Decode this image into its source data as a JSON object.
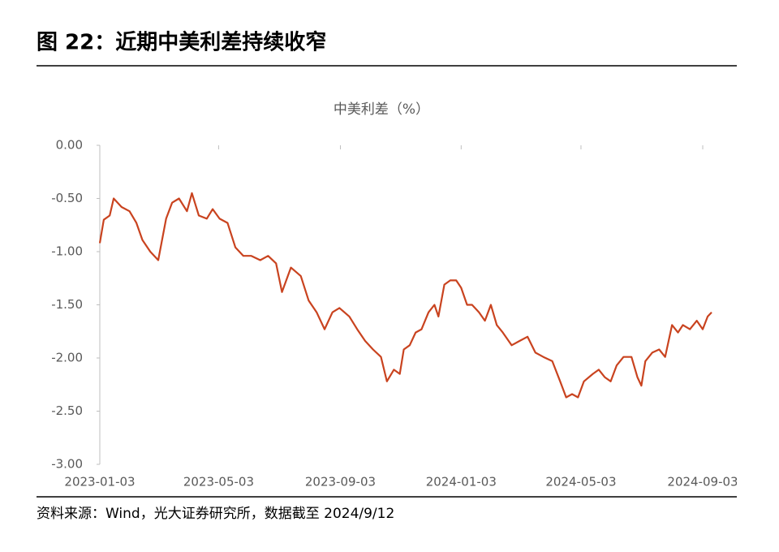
{
  "header": {
    "title": "图 22：近期中美利差持续收窄"
  },
  "chart_data": {
    "type": "line",
    "title": "中美利差（%）",
    "x": [
      "2023-01-03",
      "2023-01-07",
      "2023-01-13",
      "2023-01-17",
      "2023-01-25",
      "2023-02-02",
      "2023-02-09",
      "2023-02-15",
      "2023-02-23",
      "2023-03-03",
      "2023-03-11",
      "2023-03-17",
      "2023-03-24",
      "2023-04-01",
      "2023-04-06",
      "2023-04-13",
      "2023-04-21",
      "2023-04-27",
      "2023-05-04",
      "2023-05-12",
      "2023-05-20",
      "2023-05-28",
      "2023-06-05",
      "2023-06-14",
      "2023-06-22",
      "2023-06-30",
      "2023-07-06",
      "2023-07-15",
      "2023-07-25",
      "2023-08-02",
      "2023-08-10",
      "2023-08-18",
      "2023-08-26",
      "2023-09-02",
      "2023-09-12",
      "2023-09-20",
      "2023-09-28",
      "2023-10-06",
      "2023-10-14",
      "2023-10-20",
      "2023-10-27",
      "2023-11-02",
      "2023-11-06",
      "2023-11-12",
      "2023-11-18",
      "2023-11-24",
      "2023-12-01",
      "2023-12-07",
      "2023-12-11",
      "2023-12-17",
      "2023-12-23",
      "2023-12-29",
      "2024-01-03",
      "2024-01-09",
      "2024-01-14",
      "2024-01-21",
      "2024-01-27",
      "2024-02-02",
      "2024-02-08",
      "2024-02-14",
      "2024-02-23",
      "2024-03-02",
      "2024-03-10",
      "2024-03-18",
      "2024-03-26",
      "2024-04-04",
      "2024-04-12",
      "2024-04-18",
      "2024-04-24",
      "2024-04-30",
      "2024-05-06",
      "2024-05-15",
      "2024-05-21",
      "2024-05-27",
      "2024-06-02",
      "2024-06-08",
      "2024-06-15",
      "2024-06-23",
      "2024-06-29",
      "2024-07-03",
      "2024-07-07",
      "2024-07-14",
      "2024-07-21",
      "2024-07-27",
      "2024-08-03",
      "2024-08-09",
      "2024-08-14",
      "2024-08-21",
      "2024-08-28",
      "2024-09-03",
      "2024-09-08",
      "2024-09-12"
    ],
    "series": [
      {
        "name": "中美利差",
        "color": "#c9431f",
        "values": [
          -0.92,
          -0.7,
          -0.66,
          -0.5,
          -0.58,
          -0.62,
          -0.73,
          -0.89,
          -1.0,
          -1.08,
          -0.69,
          -0.54,
          -0.5,
          -0.62,
          -0.45,
          -0.66,
          -0.69,
          -0.6,
          -0.69,
          -0.73,
          -0.96,
          -1.04,
          -1.04,
          -1.08,
          -1.04,
          -1.11,
          -1.38,
          -1.15,
          -1.23,
          -1.46,
          -1.57,
          -1.73,
          -1.57,
          -1.53,
          -1.61,
          -1.73,
          -1.84,
          -1.92,
          -1.99,
          -2.22,
          -2.11,
          -2.15,
          -1.92,
          -1.88,
          -1.76,
          -1.73,
          -1.57,
          -1.5,
          -1.61,
          -1.31,
          -1.27,
          -1.27,
          -1.34,
          -1.5,
          -1.5,
          -1.57,
          -1.65,
          -1.5,
          -1.69,
          -1.76,
          -1.88,
          -1.84,
          -1.8,
          -1.95,
          -1.99,
          -2.03,
          -2.22,
          -2.37,
          -2.34,
          -2.37,
          -2.22,
          -2.15,
          -2.11,
          -2.18,
          -2.22,
          -2.07,
          -1.99,
          -1.99,
          -2.18,
          -2.26,
          -2.03,
          -1.95,
          -1.92,
          -1.99,
          -1.69,
          -1.76,
          -1.69,
          -1.73,
          -1.65,
          -1.73,
          -1.61,
          -1.57
        ]
      }
    ],
    "xlim": [
      "2023-01-03",
      "2024-09-12"
    ],
    "xticks": [
      "2023-01-03",
      "2023-05-03",
      "2023-09-03",
      "2024-01-03",
      "2024-05-03",
      "2024-09-03"
    ],
    "ylim": [
      -3,
      0
    ],
    "yticks": [
      {
        "value": 0,
        "label": "0.00"
      },
      {
        "value": -0.5,
        "label": "-0.50"
      },
      {
        "value": -1,
        "label": "-1.00"
      },
      {
        "value": -1.5,
        "label": "-1.50"
      },
      {
        "value": -2,
        "label": "-2.00"
      },
      {
        "value": -2.5,
        "label": "-2.50"
      },
      {
        "value": -3,
        "label": "-3.00"
      }
    ],
    "grid": false
  },
  "footer": {
    "source": "资料来源：Wind，光大证券研究所，数据截至 2024/9/12"
  }
}
